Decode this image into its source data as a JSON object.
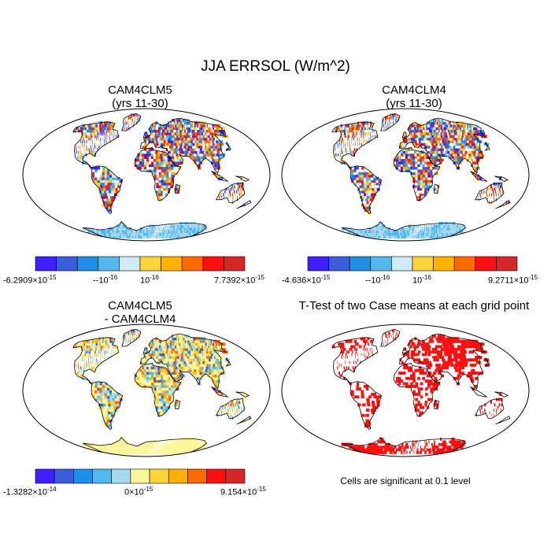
{
  "figure": {
    "title": "JJA ERRSOL (W/m^2)"
  },
  "panels": {
    "top_left": {
      "title_line1": "CAM4CLM5",
      "title_line2": "(yrs 11-30)"
    },
    "top_right": {
      "title_line1": "CAM4CLM4",
      "title_line2": "(yrs 11-30)"
    },
    "bottom_left": {
      "title_line1": "CAM4CLM5",
      "title_line2": "- CAM4CLM4"
    },
    "bottom_right": {
      "title": "T-Test of two Case means at each grid point"
    }
  },
  "colorbars": {
    "cb1": {
      "colors": [
        "#3f1fff",
        "#3a5ed9",
        "#1f8fe6",
        "#52b7ea",
        "#cfe9f7",
        "#ffd43b",
        "#ffb000",
        "#ff6a00",
        "#ff1010",
        "#d42828"
      ],
      "label_min": "-6.2909",
      "label_min_exp": "-15",
      "label_mid1": "-10",
      "label_mid1_exp": "-16",
      "label_mid2": "10",
      "label_mid2_exp": "-16",
      "label_max": "7.7392",
      "label_max_exp": "-15"
    },
    "cb2": {
      "colors": [
        "#3f1fff",
        "#3a5ed9",
        "#1f8fe6",
        "#52b7ea",
        "#cfe9f7",
        "#ffd43b",
        "#ffb000",
        "#ff6a00",
        "#ff1010",
        "#d42828"
      ],
      "label_min": "-4.636",
      "label_min_exp": "-15",
      "label_mid1": "-10",
      "label_mid1_exp": "-16",
      "label_mid2": "10",
      "label_mid2_exp": "-16",
      "label_max": "9.2711",
      "label_max_exp": "-15"
    },
    "cb3": {
      "colors": [
        "#3f1fff",
        "#3a5ed9",
        "#1f8fe6",
        "#52b7ea",
        "#a6d8f0",
        "#fbf59b",
        "#ffd43b",
        "#ffb000",
        "#ff6a00",
        "#ff1010",
        "#d42828"
      ],
      "label_min": "-1.3282",
      "label_min_exp": "-14",
      "label_mid": "0",
      "label_mid_exp": "-15",
      "label_max": "9.154",
      "label_max_exp": "-15"
    }
  },
  "significance_note": "Cells are significant at 0.1 level"
}
